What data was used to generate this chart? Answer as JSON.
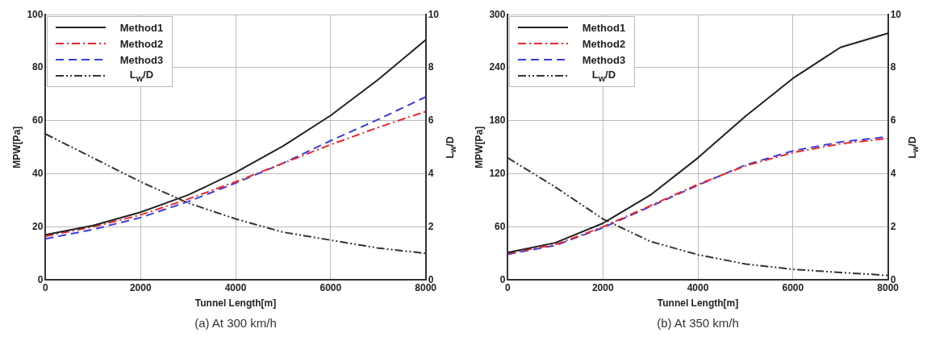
{
  "chart_data": [
    {
      "type": "line",
      "annotations": [
        "(a) At 300 km/h"
      ],
      "xlabel": "Tunnel Length[m]",
      "ylabel": "MPW[Pa]",
      "y2label": "L$_{w}$/D",
      "x": [
        0,
        1000,
        2000,
        3000,
        4000,
        5000,
        6000,
        7000,
        8000
      ],
      "xlim": [
        0,
        8000
      ],
      "xticks": [
        0,
        2000,
        4000,
        6000,
        8000
      ],
      "ylim": [
        0,
        100
      ],
      "yticks": [
        0,
        20,
        40,
        60,
        80,
        100
      ],
      "y2lim": [
        0,
        10
      ],
      "y2ticks": [
        0,
        2,
        4,
        6,
        8,
        10
      ],
      "grid": true,
      "legend": "top left",
      "series": [
        {
          "name": "Method1",
          "color": "#222222",
          "line_style": "solid",
          "values": [
            17,
            20.5,
            25.5,
            32,
            40.5,
            50.5,
            62,
            75.5,
            90.5
          ]
        },
        {
          "name": "Method2",
          "color": "#e8282b",
          "line_style": "dashdot",
          "values": [
            16.5,
            20,
            24.5,
            30.5,
            37,
            44,
            51,
            57.5,
            63.5
          ]
        },
        {
          "name": "Method3",
          "color": "#3b3bdd",
          "line_style": "dashed",
          "values": [
            15.5,
            19,
            23.5,
            29.5,
            36.5,
            44,
            52.5,
            60.5,
            69
          ]
        },
        {
          "name": "L$_{w}$/D",
          "color": "#333333",
          "line_style": "dashdotdot",
          "axis": "y2",
          "values": [
            5.5,
            4.6,
            3.7,
            2.9,
            2.3,
            1.8,
            1.5,
            1.2,
            1.0
          ]
        }
      ]
    },
    {
      "type": "line",
      "annotations": [
        "(b) At 350 km/h"
      ],
      "xlabel": "Tunnel Length[m]",
      "ylabel": "MPW[Pa]",
      "y2label": "L$_{w}$/D",
      "x": [
        0,
        1000,
        2000,
        3000,
        4000,
        5000,
        6000,
        7000,
        8000
      ],
      "xlim": [
        0,
        8000
      ],
      "xticks": [
        0,
        2000,
        4000,
        6000,
        8000
      ],
      "ylim": [
        0,
        300
      ],
      "yticks": [
        0,
        60,
        120,
        180,
        240,
        300
      ],
      "y2lim": [
        0,
        10
      ],
      "y2ticks": [
        0,
        2,
        4,
        6,
        8,
        10
      ],
      "grid": true,
      "legend": "top left",
      "series": [
        {
          "name": "Method1",
          "color": "#222222",
          "line_style": "solid",
          "values": [
            31,
            42,
            64,
            96,
            138,
            185,
            228,
            263,
            279
          ]
        },
        {
          "name": "Method2",
          "color": "#e8282b",
          "line_style": "dashdot",
          "values": [
            30,
            40,
            60,
            84,
            108,
            129,
            144,
            154,
            160
          ]
        },
        {
          "name": "Method3",
          "color": "#3b3bdd",
          "line_style": "dashed",
          "values": [
            29,
            39,
            59,
            83,
            107,
            130,
            146,
            156,
            162
          ]
        },
        {
          "name": "L$_{w}$/D",
          "color": "#333333",
          "line_style": "dashdotdot",
          "axis": "y2",
          "values": [
            4.6,
            3.5,
            2.3,
            1.45,
            0.95,
            0.6,
            0.4,
            0.28,
            0.17
          ]
        }
      ]
    }
  ]
}
